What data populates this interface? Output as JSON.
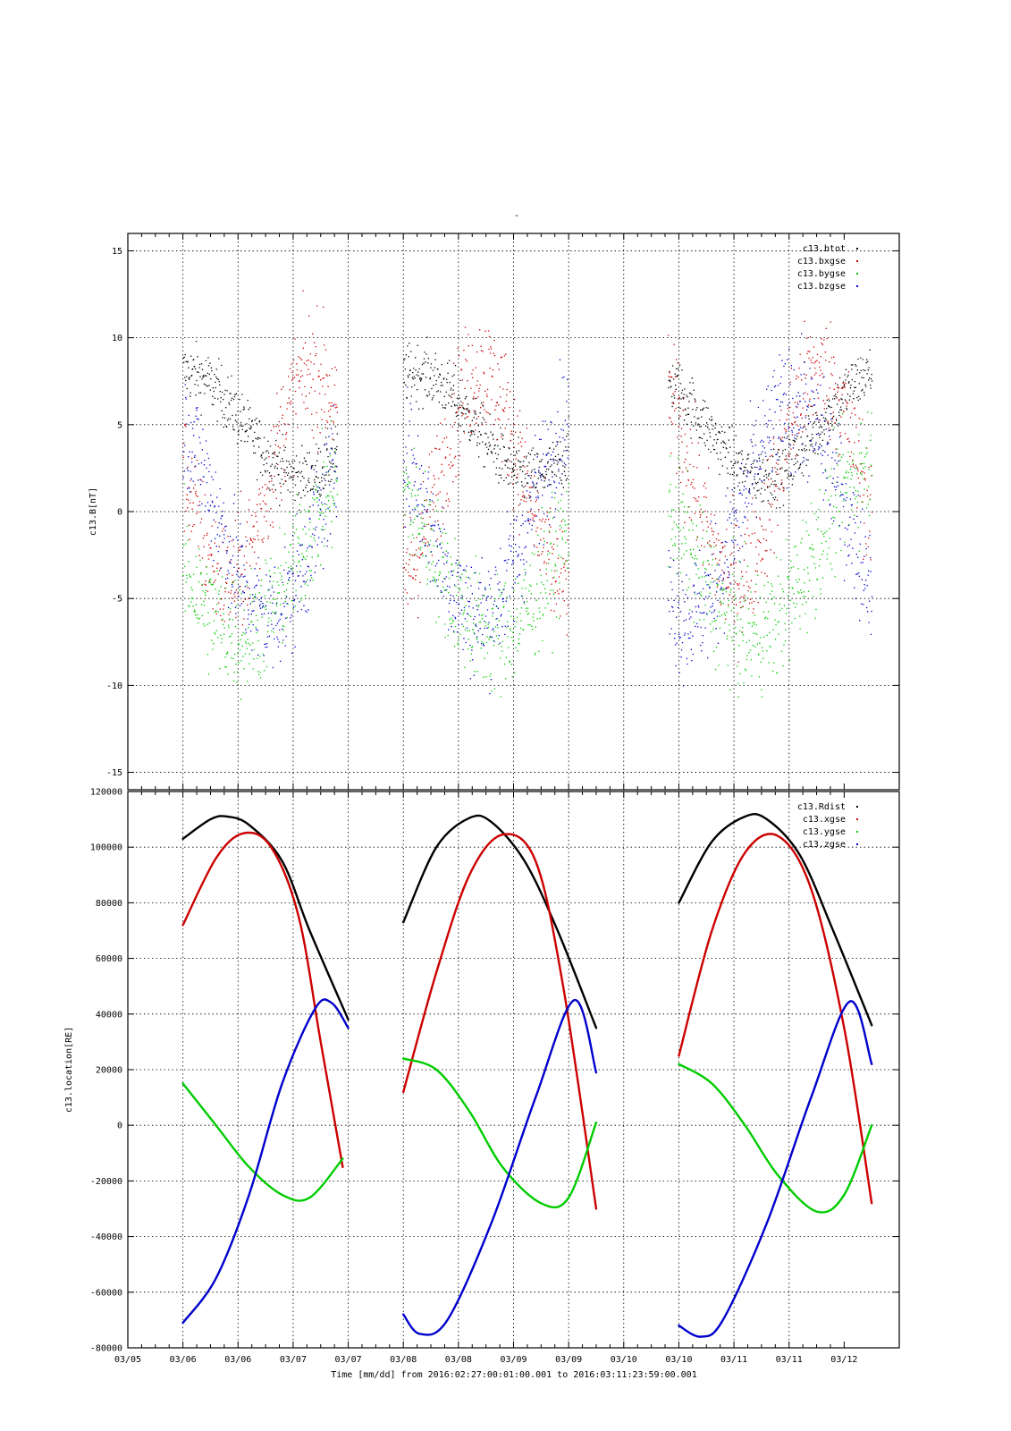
{
  "page_title": "-",
  "footer": {
    "time_label": "Time [mm/dd]",
    "from_label": "from",
    "start": "2016:02:27:00:01:00.001",
    "to_label": "to",
    "end": "2016:03:11:23:59:00.001"
  },
  "colors": {
    "black": "#000000",
    "red": "#cc0000",
    "green": "#00cc00",
    "blue": "#0000cc"
  },
  "chart_data": [
    {
      "type": "scatter",
      "ylabel": "c13.B[nT]",
      "ylim": [
        -16,
        16
      ],
      "yticks": [
        -15,
        -10,
        -5,
        0,
        5,
        10,
        15
      ],
      "xlim_days": [
        0,
        7
      ],
      "xtick_labels": [
        "03/05",
        "03/06",
        "03/06",
        "03/07",
        "03/07",
        "03/08",
        "03/08",
        "03/09",
        "03/09",
        "03/10",
        "03/10",
        "03/11",
        "03/11",
        "03/12"
      ],
      "grid": true,
      "legend_position": "top-right",
      "series": [
        {
          "name": "c13.btot",
          "color": "#000000"
        },
        {
          "name": "c13.bxgse",
          "color": "#cc0000"
        },
        {
          "name": "c13.bygse",
          "color": "#00cc00"
        },
        {
          "name": "c13.bzgse",
          "color": "#0000cc"
        }
      ],
      "segments": [
        {
          "x": [
            0.5,
            1.9
          ]
        },
        {
          "x": [
            2.5,
            4.0
          ]
        },
        {
          "x": [
            4.9,
            6.75
          ]
        }
      ]
    },
    {
      "type": "line",
      "ylabel": "c13.location[RE]",
      "ylim": [
        -80000,
        120000
      ],
      "yticks": [
        -80000,
        -60000,
        -40000,
        -20000,
        0,
        20000,
        40000,
        60000,
        80000,
        100000,
        120000
      ],
      "xlim_days": [
        0,
        7
      ],
      "xtick_labels": [
        "03/05",
        "03/06",
        "03/06",
        "03/07",
        "03/07",
        "03/08",
        "03/08",
        "03/09",
        "03/09",
        "03/10",
        "03/10",
        "03/11",
        "03/11",
        "03/12"
      ],
      "grid": true,
      "legend_position": "top-right",
      "series": [
        {
          "name": "c13.Rdist",
          "color": "#000000",
          "segments": [
            {
              "x": [
                0.5,
                0.75,
                0.9,
                1.1,
                1.4,
                1.65,
                2.0
              ],
              "y": [
                103000,
                110000,
                111000,
                108000,
                95000,
                70000,
                38000
              ]
            },
            {
              "x": [
                2.5,
                2.8,
                3.1,
                3.3,
                3.6,
                3.9,
                4.25
              ],
              "y": [
                73000,
                100000,
                110500,
                109000,
                95000,
                70000,
                35000
              ]
            },
            {
              "x": [
                5.0,
                5.3,
                5.6,
                5.8,
                6.1,
                6.4,
                6.75
              ],
              "y": [
                80000,
                102000,
                111000,
                110000,
                97000,
                70000,
                36000
              ]
            }
          ]
        },
        {
          "name": "c13.xgse",
          "color": "#cc0000",
          "segments": [
            {
              "x": [
                0.5,
                0.8,
                1.05,
                1.3,
                1.55,
                1.75,
                1.95
              ],
              "y": [
                72000,
                96000,
                105000,
                100000,
                75000,
                30000,
                -15000
              ]
            },
            {
              "x": [
                2.5,
                2.8,
                3.1,
                3.4,
                3.7,
                3.95,
                4.25
              ],
              "y": [
                12000,
                55000,
                90000,
                104500,
                95000,
                50000,
                -30000
              ]
            },
            {
              "x": [
                5.0,
                5.3,
                5.6,
                5.9,
                6.2,
                6.5,
                6.75
              ],
              "y": [
                25000,
                70000,
                98000,
                104000,
                85000,
                35000,
                -28000
              ]
            }
          ]
        },
        {
          "name": "c13.ygse",
          "color": "#00cc00",
          "segments": [
            {
              "x": [
                0.5,
                0.8,
                1.1,
                1.4,
                1.65,
                1.95
              ],
              "y": [
                15000,
                0,
                -15000,
                -25000,
                -26000,
                -12000
              ]
            },
            {
              "x": [
                2.5,
                2.8,
                3.1,
                3.4,
                3.75,
                4.0,
                4.25
              ],
              "y": [
                24000,
                20000,
                5000,
                -15000,
                -28000,
                -26000,
                1000
              ]
            },
            {
              "x": [
                5.0,
                5.3,
                5.6,
                5.9,
                6.25,
                6.5,
                6.75
              ],
              "y": [
                22000,
                15000,
                0,
                -18000,
                -31000,
                -25000,
                0
              ]
            }
          ]
        },
        {
          "name": "c13.zgse",
          "color": "#0000cc",
          "segments": [
            {
              "x": [
                0.5,
                0.8,
                1.1,
                1.4,
                1.7,
                1.85,
                2.0
              ],
              "y": [
                -71000,
                -55000,
                -25000,
                15000,
                42000,
                44000,
                35000
              ]
            },
            {
              "x": [
                2.5,
                2.65,
                2.9,
                3.3,
                3.7,
                4.05,
                4.25
              ],
              "y": [
                -68000,
                -75000,
                -70000,
                -35000,
                10000,
                45000,
                19000
              ]
            },
            {
              "x": [
                5.0,
                5.2,
                5.4,
                5.8,
                6.2,
                6.55,
                6.75
              ],
              "y": [
                -72000,
                -76000,
                -70000,
                -35000,
                10000,
                44500,
                22000
              ]
            }
          ]
        }
      ]
    }
  ]
}
